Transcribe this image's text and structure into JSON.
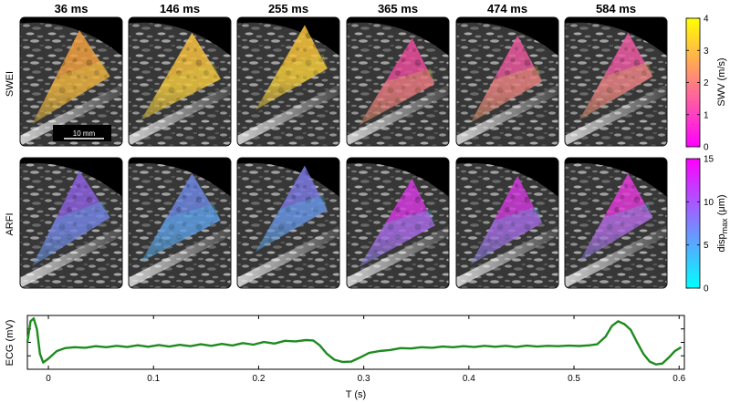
{
  "frame_times": [
    "36 ms",
    "146 ms",
    "255 ms",
    "365 ms",
    "474 ms",
    "584 ms"
  ],
  "rows": {
    "swei": {
      "label": "SWEI",
      "dominant_colors": [
        "#f0a040",
        "#f6c040",
        "#f7c23a",
        "#e84c9a",
        "#e8589c",
        "#ec5aa2"
      ]
    },
    "arfi": {
      "label": "ARFI",
      "dominant_colors": [
        "#8a60dc",
        "#6c86e0",
        "#7a78e0",
        "#d43ae0",
        "#cc3ad8",
        "#e23ad8"
      ]
    }
  },
  "scale_bar": {
    "label": "10 mm"
  },
  "colorbars": {
    "swv": {
      "label": "SWV (m/s)",
      "ticks": [
        "0",
        "1",
        "2",
        "3",
        "4"
      ],
      "min": 0,
      "max": 4,
      "colors": [
        "#ff00ff",
        "#ff40c0",
        "#ff8080",
        "#ffbf40",
        "#ffff00"
      ]
    },
    "disp": {
      "label_main": "disp",
      "label_sub": "max",
      "label_unit": " (μm)",
      "ticks": [
        "0",
        "5",
        "10",
        "15"
      ],
      "min": 0,
      "max": 15,
      "colors": [
        "#00ffff",
        "#8080ff",
        "#ff00ff"
      ]
    }
  },
  "ecg": {
    "ylabel": "ECG (mV)",
    "xlabel": "T (s)",
    "xticks": [
      "0",
      "0.1",
      "0.2",
      "0.3",
      "0.4",
      "0.5",
      "0.6"
    ],
    "xtick_values": [
      0,
      0.1,
      0.2,
      0.3,
      0.4,
      0.5,
      0.6
    ],
    "xlim": [
      -0.02,
      0.605
    ],
    "ylim": [
      -1.2,
      1.6
    ],
    "line_color": "#1f8a1f",
    "trace": [
      [
        -0.02,
        0.2
      ],
      [
        -0.017,
        1.3
      ],
      [
        -0.014,
        1.45
      ],
      [
        -0.011,
        0.9
      ],
      [
        -0.008,
        -0.4
      ],
      [
        -0.005,
        -0.85
      ],
      [
        0.0,
        -0.65
      ],
      [
        0.008,
        -0.25
      ],
      [
        0.016,
        -0.1
      ],
      [
        0.025,
        -0.05
      ],
      [
        0.035,
        -0.08
      ],
      [
        0.045,
        0.0
      ],
      [
        0.055,
        -0.05
      ],
      [
        0.065,
        0.02
      ],
      [
        0.075,
        -0.04
      ],
      [
        0.085,
        0.05
      ],
      [
        0.095,
        -0.03
      ],
      [
        0.105,
        0.06
      ],
      [
        0.115,
        -0.02
      ],
      [
        0.125,
        0.07
      ],
      [
        0.135,
        0.0
      ],
      [
        0.145,
        0.1
      ],
      [
        0.155,
        0.02
      ],
      [
        0.165,
        0.12
      ],
      [
        0.175,
        0.04
      ],
      [
        0.185,
        0.16
      ],
      [
        0.195,
        0.08
      ],
      [
        0.205,
        0.22
      ],
      [
        0.215,
        0.14
      ],
      [
        0.225,
        0.28
      ],
      [
        0.235,
        0.25
      ],
      [
        0.245,
        0.32
      ],
      [
        0.252,
        0.3
      ],
      [
        0.258,
        0.05
      ],
      [
        0.265,
        -0.4
      ],
      [
        0.272,
        -0.7
      ],
      [
        0.28,
        -0.82
      ],
      [
        0.288,
        -0.8
      ],
      [
        0.296,
        -0.6
      ],
      [
        0.305,
        -0.35
      ],
      [
        0.315,
        -0.25
      ],
      [
        0.325,
        -0.2
      ],
      [
        0.335,
        -0.1
      ],
      [
        0.345,
        -0.12
      ],
      [
        0.355,
        -0.05
      ],
      [
        0.365,
        -0.08
      ],
      [
        0.375,
        -0.02
      ],
      [
        0.385,
        -0.05
      ],
      [
        0.395,
        0.0
      ],
      [
        0.405,
        -0.04
      ],
      [
        0.415,
        0.02
      ],
      [
        0.425,
        -0.03
      ],
      [
        0.435,
        0.02
      ],
      [
        0.445,
        -0.04
      ],
      [
        0.455,
        0.03
      ],
      [
        0.465,
        -0.02
      ],
      [
        0.475,
        0.02
      ],
      [
        0.485,
        0.0
      ],
      [
        0.495,
        0.03
      ],
      [
        0.505,
        0.01
      ],
      [
        0.515,
        0.05
      ],
      [
        0.522,
        0.1
      ],
      [
        0.53,
        0.5
      ],
      [
        0.536,
        1.05
      ],
      [
        0.542,
        1.3
      ],
      [
        0.548,
        1.15
      ],
      [
        0.554,
        0.85
      ],
      [
        0.56,
        0.2
      ],
      [
        0.566,
        -0.4
      ],
      [
        0.572,
        -0.8
      ],
      [
        0.578,
        -0.95
      ],
      [
        0.584,
        -0.9
      ],
      [
        0.59,
        -0.6
      ],
      [
        0.596,
        -0.25
      ],
      [
        0.602,
        -0.05
      ]
    ]
  }
}
